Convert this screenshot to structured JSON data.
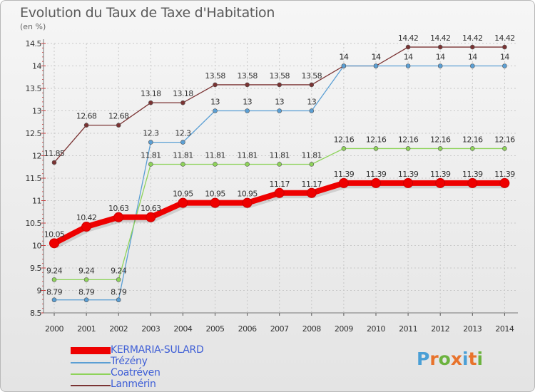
{
  "title": "Evolution du Taux de Taxe d'Habitation",
  "subtitle": "(en %)",
  "logo": {
    "letters": [
      "P",
      "r",
      "o",
      "x",
      "i",
      "t",
      "i"
    ],
    "colors": [
      "#4a9fd6",
      "#e8732c",
      "#6cb33f",
      "#e8732c",
      "#4a9fd6",
      "#e8732c",
      "#6cb33f"
    ]
  },
  "chart_data": {
    "type": "line",
    "x": [
      "2000",
      "2001",
      "2002",
      "2003",
      "2004",
      "2005",
      "2006",
      "2007",
      "2008",
      "2009",
      "2010",
      "2011",
      "2012",
      "2013",
      "2014"
    ],
    "ylim": [
      8.5,
      14.5
    ],
    "yticks": [
      "8.5",
      "9",
      "9.5",
      "10",
      "10.5",
      "11",
      "11.5",
      "12",
      "12.5",
      "13",
      "13.5",
      "14",
      "14.5"
    ],
    "grid": true,
    "legend_position": "bottom-left",
    "series": [
      {
        "name": "KERMARIA-SULARD",
        "color": "#ee0000",
        "values": [
          10.05,
          10.42,
          10.63,
          10.63,
          10.95,
          10.95,
          10.95,
          11.17,
          11.17,
          11.39,
          11.39,
          11.39,
          11.39,
          11.39,
          11.39
        ],
        "labels": [
          "10.05",
          "10.42",
          "10.63",
          "10.63",
          "10.95",
          "10.95",
          "10.95",
          "11.17",
          "11.17",
          "11.39",
          "11.39",
          "11.39",
          "11.39",
          "11.39",
          "11.39"
        ]
      },
      {
        "name": "Trézény",
        "color": "#5b9fd4",
        "values": [
          8.79,
          8.79,
          8.79,
          12.3,
          12.3,
          13,
          13,
          13,
          13,
          14,
          14,
          14,
          14,
          14,
          14
        ],
        "labels": [
          "8.79",
          "8.79",
          "8.79",
          "12.3",
          "12.3",
          "13",
          "13",
          "13",
          "13",
          "14",
          "14",
          "14",
          "14",
          "14",
          "14"
        ]
      },
      {
        "name": "Coatréven",
        "color": "#8ed35a",
        "values": [
          9.24,
          9.24,
          9.24,
          11.81,
          11.81,
          11.81,
          11.81,
          11.81,
          11.81,
          12.16,
          12.16,
          12.16,
          12.16,
          12.16,
          12.16
        ],
        "labels": [
          "9.24",
          "9.24",
          "9.24",
          "11.81",
          "11.81",
          "11.81",
          "11.81",
          "11.81",
          "11.81",
          "12.16",
          "12.16",
          "12.16",
          "12.16",
          "12.16",
          "12.16"
        ]
      },
      {
        "name": "Lanmérin",
        "color": "#7a3333",
        "values": [
          11.85,
          12.68,
          12.68,
          13.18,
          13.18,
          13.58,
          13.58,
          13.58,
          13.58,
          14,
          14,
          14.42,
          14.42,
          14.42,
          14.42
        ],
        "labels": [
          "11.85",
          "12.68",
          "12.68",
          "13.18",
          "13.18",
          "13.58",
          "13.58",
          "13.58",
          "13.58",
          "14",
          "14",
          "14.42",
          "14.42",
          "14.42",
          "14.42"
        ]
      }
    ]
  }
}
